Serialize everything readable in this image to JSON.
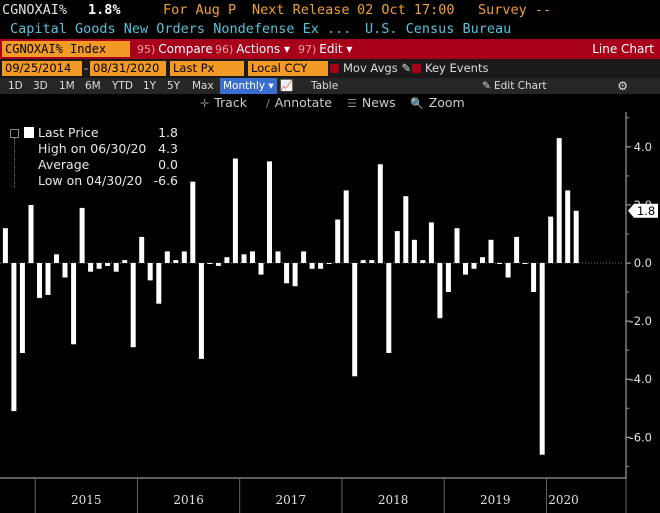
{
  "header": {
    "ticker_code": "CGNOXAI%",
    "last_value": "1.8%",
    "for_period": "For Aug P",
    "next_release_label": "Next Release",
    "next_release_date": "02 Oct 17:00",
    "survey": "Survey --",
    "series_name": "Capital Goods New Orders Nondefense Ex ...",
    "source": "U.S. Census Bureau"
  },
  "toolbar": {
    "ticker_input": "CGNOXAI% Index",
    "compare_num": "95)",
    "compare_label": "Compare",
    "actions_num": "96)",
    "actions_label": "Actions ▾",
    "edit_num": "97)",
    "edit_label": "Edit ▾",
    "chart_type": "Line Chart"
  },
  "options": {
    "start_date": "09/25/2014",
    "end_date": "08/31/2020",
    "field": "Last Px",
    "currency": "Local CCY",
    "mov_avgs": "Mov Avgs",
    "key_events": "Key Events"
  },
  "periods": {
    "items": [
      "1D",
      "3D",
      "1M",
      "6M",
      "YTD",
      "1Y",
      "5Y",
      "Max"
    ],
    "frequency": "Monthly ▾",
    "table": "Table",
    "edit_chart": "Edit Chart"
  },
  "tools": {
    "track": "Track",
    "annotate": "Annotate",
    "news": "News",
    "zoom": "Zoom"
  },
  "legend": {
    "last_price_label": "Last Price",
    "last_price_value": "1.8",
    "high_label": "High on 06/30/20",
    "high_value": "4.3",
    "average_label": "Average",
    "average_value": "0.0",
    "low_label": "Low on 04/30/20",
    "low_value": "-6.6"
  },
  "colors": {
    "accent_orange": "#f39a26",
    "brand_red": "#a8001b",
    "header_cyan": "#56c3dc",
    "bar_white": "#ffffff"
  },
  "chart_data": {
    "type": "bar",
    "frequency": "monthly",
    "x_start": "2014-09",
    "x_end": "2020-08",
    "year_labels": [
      "2015",
      "2016",
      "2017",
      "2018",
      "2019",
      "2020"
    ],
    "ylim": [
      -7.4,
      5.2
    ],
    "yticks": [
      -6.0,
      -4.0,
      -2.0,
      0.0,
      2.0,
      4.0
    ],
    "ytick_labels": [
      "-6.0",
      "-4.0",
      "-2.0",
      "0.0",
      "2.0",
      "4.0"
    ],
    "last_value_label": "1.8",
    "values": [
      1.2,
      -5.1,
      -3.1,
      2.0,
      -1.2,
      -1.1,
      0.3,
      -0.5,
      -2.8,
      1.9,
      -0.3,
      -0.2,
      -0.1,
      -0.3,
      0.1,
      -2.9,
      0.9,
      -0.6,
      -1.4,
      0.4,
      0.1,
      0.4,
      2.8,
      -3.3,
      0.0,
      -0.1,
      0.2,
      3.6,
      0.3,
      0.4,
      -0.4,
      3.5,
      0.4,
      -0.7,
      -0.8,
      0.4,
      -0.2,
      -0.2,
      0.0,
      1.5,
      2.5,
      -3.9,
      0.1,
      0.1,
      3.4,
      -3.1,
      1.1,
      2.3,
      0.8,
      0.1,
      1.4,
      -1.9,
      -1.0,
      1.2,
      -0.4,
      -0.2,
      0.2,
      0.8,
      0.0,
      -0.5,
      0.9,
      0.0,
      -1.0,
      -6.6,
      1.6,
      4.3,
      2.5,
      1.8
    ],
    "grid": false,
    "legend_position": "top-left"
  }
}
